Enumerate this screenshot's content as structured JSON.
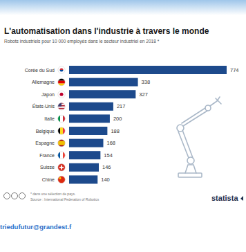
{
  "chart_data": {
    "type": "bar",
    "orientation": "horizontal",
    "title": "L'automatisation dans l'industrie à travers le monde",
    "subtitle": "Robots industriels pour 10 000 employés dans le secteur industriel en 2018 *",
    "categories": [
      "Corée du Sud",
      "Allemagne",
      "Japon",
      "États-Unis",
      "Italie",
      "Belgique",
      "Espagne",
      "France",
      "Suisse",
      "Chine"
    ],
    "values": [
      774,
      338,
      327,
      217,
      200,
      188,
      168,
      154,
      146,
      140
    ],
    "color": "#1d4a8c",
    "xlim": [
      0,
      774
    ],
    "data_labels": true,
    "tick_labels": "y",
    "grid": false,
    "annotations": [
      "* dans une sélection de pays.",
      "Source : International Federation of Robotics",
      "statista"
    ]
  },
  "footer": {
    "text": "triedufutur@grandest.f"
  }
}
